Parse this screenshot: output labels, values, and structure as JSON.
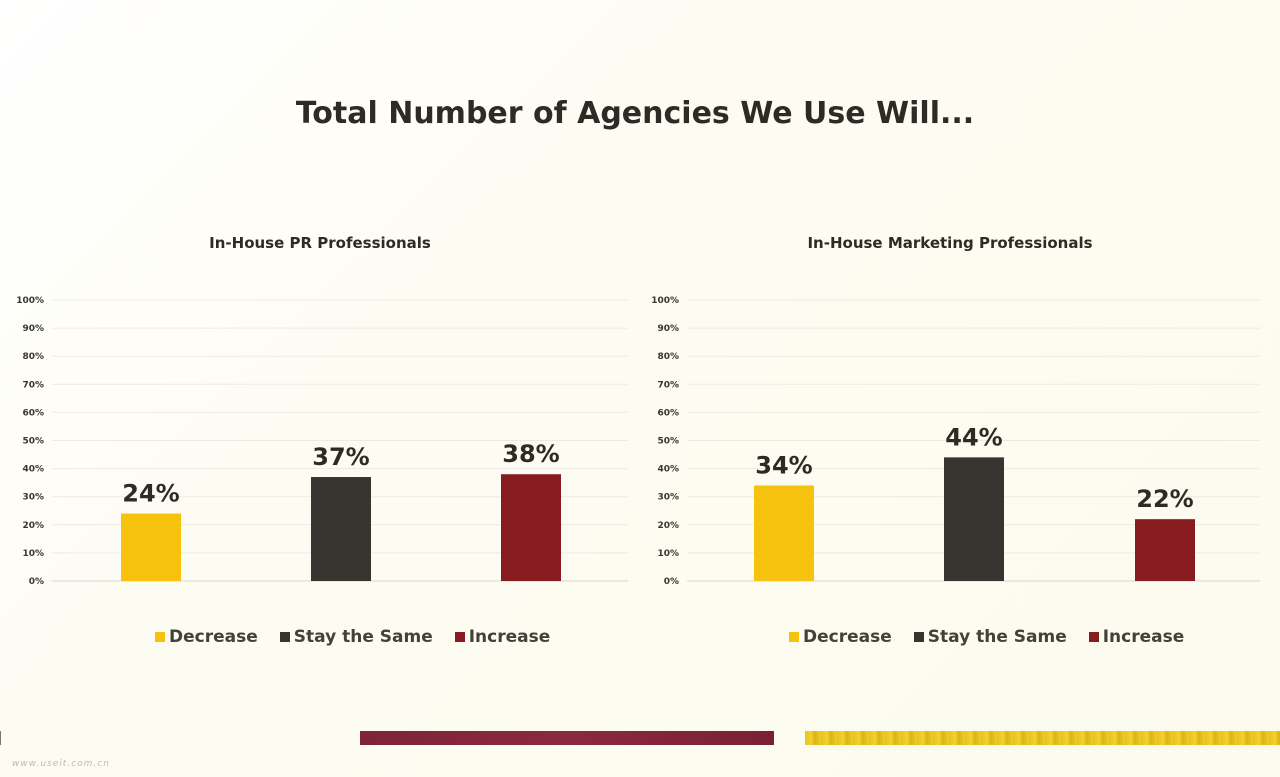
{
  "title": "Total Number of Agencies We Use Will...",
  "colors": {
    "decrease": "#f7c20e",
    "same": "#373530",
    "increase": "#861c1f"
  },
  "legend": [
    "Decrease",
    "Stay the Same",
    "Increase"
  ],
  "chart_data": [
    {
      "type": "bar",
      "title": "In-House PR Professionals",
      "categories": [
        "Decrease",
        "Stay the Same",
        "Increase"
      ],
      "values": [
        24,
        37,
        38
      ],
      "labels": [
        "24%",
        "37%",
        "38%"
      ],
      "ylim": [
        0,
        100
      ],
      "yticks": [
        "0%",
        "10%",
        "20%",
        "30%",
        "40%",
        "50%",
        "60%",
        "70%",
        "80%",
        "90%",
        "100%"
      ],
      "grid": true,
      "legend_position": "bottom"
    },
    {
      "type": "bar",
      "title": "In-House Marketing Professionals",
      "categories": [
        "Decrease",
        "Stay the Same",
        "Increase"
      ],
      "values": [
        34,
        44,
        22
      ],
      "labels": [
        "34%",
        "44%",
        "22%"
      ],
      "ylim": [
        0,
        100
      ],
      "yticks": [
        "0%",
        "10%",
        "20%",
        "30%",
        "40%",
        "50%",
        "60%",
        "70%",
        "80%",
        "90%",
        "100%"
      ],
      "grid": true,
      "legend_position": "bottom"
    }
  ],
  "watermark": "www.useit.com.cn"
}
